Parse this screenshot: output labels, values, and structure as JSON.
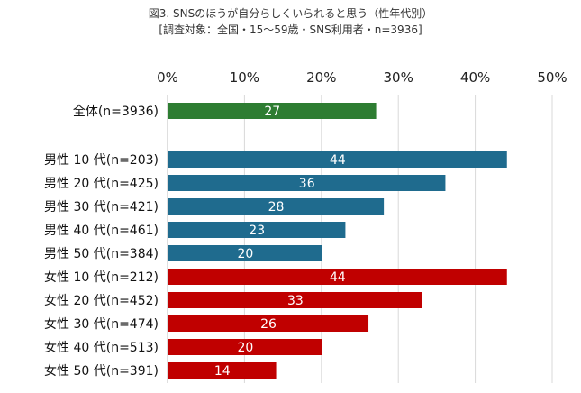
{
  "title": "図3. SNSのほうが自分らしくいられると思う（性年代別）",
  "subtitle": "[調査対象：全国・15～59歳・SNS利用者・n=3936]",
  "colors": {
    "total": "#2E7D32",
    "male": "#1F6B8E",
    "female": "#C00000",
    "grid": "#D9D9D9"
  },
  "chart_data": {
    "type": "bar",
    "orientation": "horizontal",
    "title": "図3. SNSのほうが自分らしくいられると思う（性年代別）",
    "subtitle": "[調査対象：全国・15～59歳・SNS利用者・n=3936]",
    "xlim": [
      0,
      50
    ],
    "x_ticks": [
      "0%",
      "10%",
      "20%",
      "30%",
      "40%",
      "50%"
    ],
    "x_tick_values": [
      0,
      10,
      20,
      30,
      40,
      50
    ],
    "grid": true,
    "categories": [
      "全体(n=3936)",
      "男性 10 代(n=203)",
      "男性 20 代(n=425)",
      "男性 30 代(n=421)",
      "男性 40 代(n=461)",
      "男性 50 代(n=384)",
      "女性 10 代(n=212)",
      "女性 20 代(n=452)",
      "女性 30 代(n=474)",
      "女性 40 代(n=513)",
      "女性 50 代(n=391)"
    ],
    "values": [
      27,
      44,
      36,
      28,
      23,
      20,
      44,
      33,
      26,
      20,
      14
    ],
    "groups": [
      "total",
      "male",
      "male",
      "male",
      "male",
      "male",
      "female",
      "female",
      "female",
      "female",
      "female"
    ]
  }
}
